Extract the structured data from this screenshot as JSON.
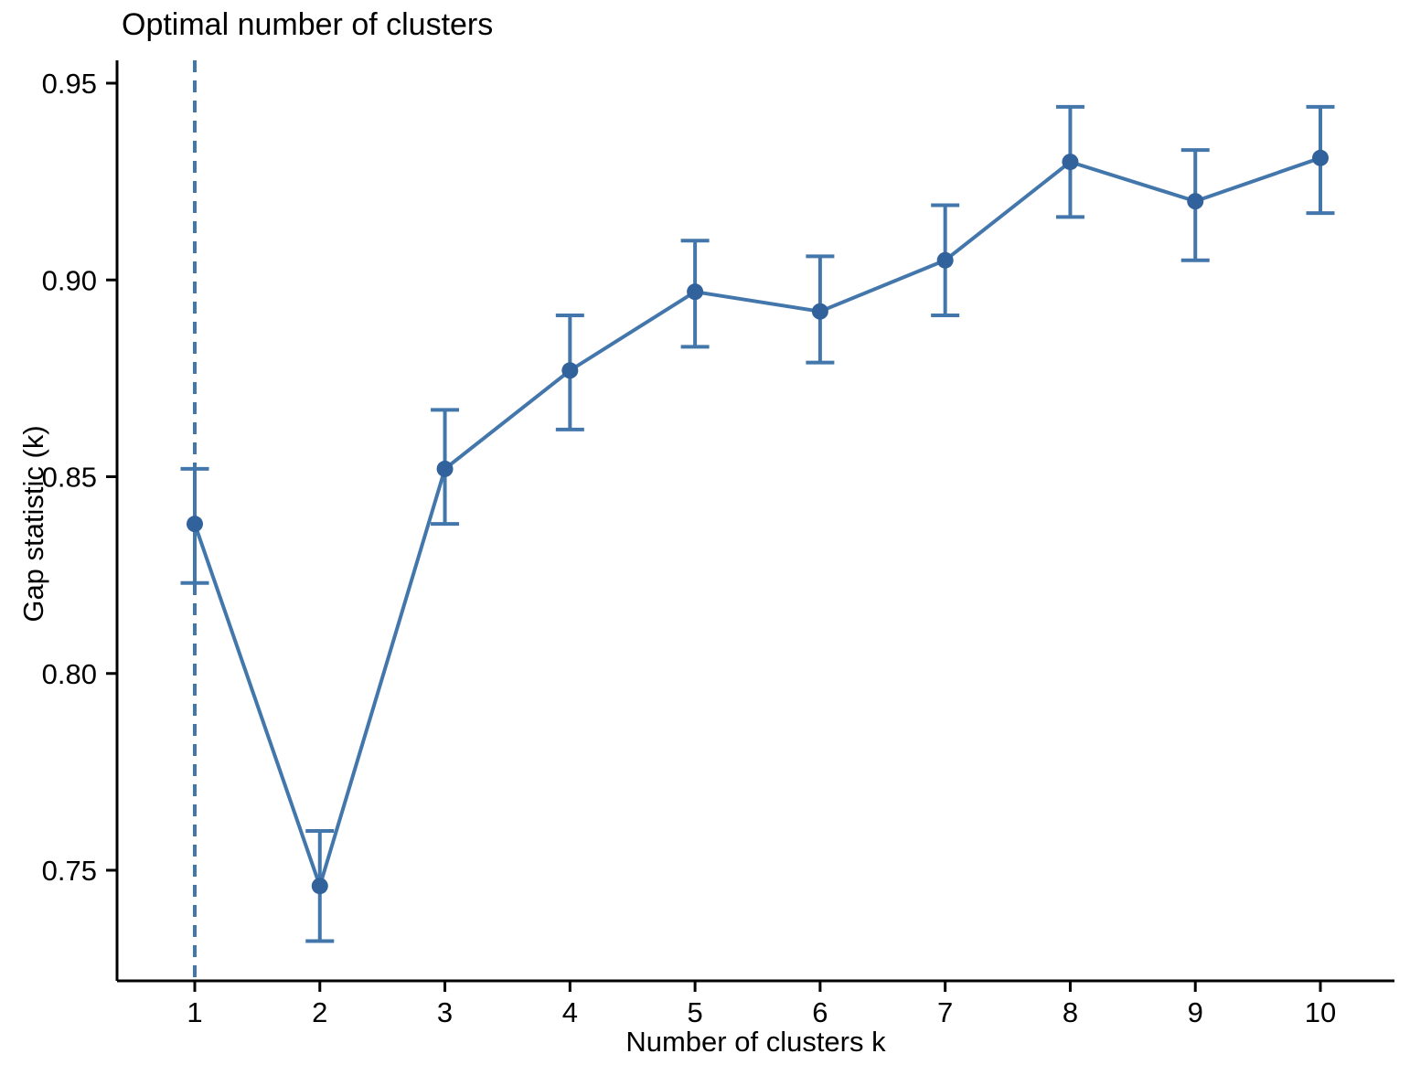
{
  "chart_data": {
    "type": "line",
    "title": "Optimal number of clusters",
    "xlabel": "Number of clusters k",
    "ylabel": "Gap statistic (k)",
    "x": [
      1,
      2,
      3,
      4,
      5,
      6,
      7,
      8,
      9,
      10
    ],
    "series": [
      {
        "name": "Gap statistic",
        "values": [
          0.838,
          0.746,
          0.852,
          0.877,
          0.897,
          0.892,
          0.905,
          0.93,
          0.92,
          0.931
        ],
        "error_low": [
          0.823,
          0.732,
          0.838,
          0.862,
          0.883,
          0.879,
          0.891,
          0.916,
          0.905,
          0.917
        ],
        "error_high": [
          0.852,
          0.76,
          0.867,
          0.891,
          0.91,
          0.906,
          0.919,
          0.944,
          0.933,
          0.944
        ]
      }
    ],
    "vline_x": 1,
    "xlim": [
      0.4,
      10.6
    ],
    "ylim": [
      0.722,
      0.955
    ],
    "xticks": [
      "1",
      "2",
      "3",
      "4",
      "5",
      "6",
      "7",
      "8",
      "9",
      "10"
    ],
    "yticks": [
      "0.75",
      "0.80",
      "0.85",
      "0.90",
      "0.95"
    ],
    "ytick_values": [
      0.75,
      0.8,
      0.85,
      0.9,
      0.95
    ],
    "grid": "off",
    "legend": "none",
    "colors": {
      "line": "#4377ac",
      "point": "#31629c",
      "errorbar": "#4377ac",
      "vline": "#4377ac",
      "axis": "#000000",
      "text": "#000000",
      "background": "#ffffff"
    }
  }
}
